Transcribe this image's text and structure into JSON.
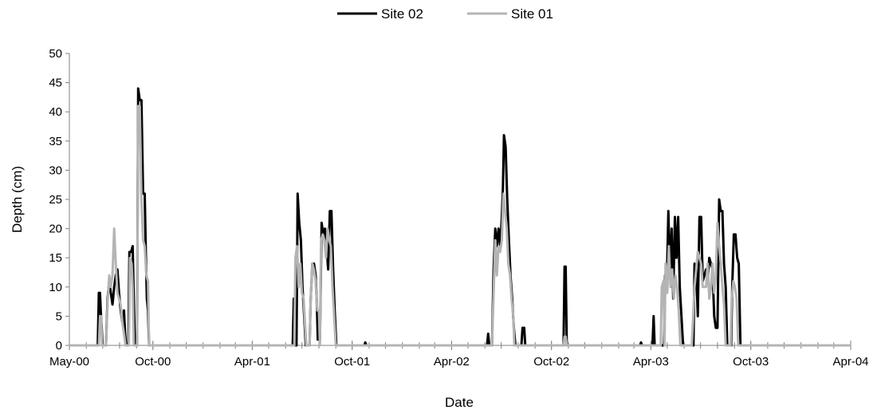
{
  "chart_data": {
    "type": "line",
    "title": "",
    "xlabel": "Date",
    "ylabel": "Depth (cm)",
    "ylim": [
      0,
      50
    ],
    "yticks": [
      0,
      5,
      10,
      15,
      20,
      25,
      30,
      35,
      40,
      45,
      50
    ],
    "xlim": [
      "2000-05-01",
      "2004-04-01"
    ],
    "xticks": [
      {
        "date": "2000-05-01",
        "label": "May-00"
      },
      {
        "date": "2000-10-01",
        "label": "Oct-00"
      },
      {
        "date": "2001-04-01",
        "label": "Apr-01"
      },
      {
        "date": "2001-10-01",
        "label": "Oct-01"
      },
      {
        "date": "2002-04-01",
        "label": "Apr-02"
      },
      {
        "date": "2002-10-01",
        "label": "Oct-02"
      },
      {
        "date": "2003-04-01",
        "label": "Apr-03"
      },
      {
        "date": "2003-10-01",
        "label": "Oct-03"
      },
      {
        "date": "2004-04-01",
        "label": "Apr-04"
      }
    ],
    "grid": false,
    "legend": "top-center",
    "series": [
      {
        "name": "Site 02",
        "color": "#000000",
        "points": [
          [
            "2000-05-01",
            0
          ],
          [
            "2000-06-22",
            0
          ],
          [
            "2000-06-24",
            9
          ],
          [
            "2000-06-26",
            9
          ],
          [
            "2000-06-28",
            5
          ],
          [
            "2000-07-01",
            0
          ],
          [
            "2000-07-07",
            0
          ],
          [
            "2000-07-10",
            8
          ],
          [
            "2000-07-13",
            11
          ],
          [
            "2000-07-16",
            9
          ],
          [
            "2000-07-19",
            7
          ],
          [
            "2000-07-22",
            10
          ],
          [
            "2000-07-25",
            12
          ],
          [
            "2000-07-28",
            13
          ],
          [
            "2000-07-31",
            9
          ],
          [
            "2000-08-03",
            6
          ],
          [
            "2000-08-06",
            4
          ],
          [
            "2000-08-09",
            6
          ],
          [
            "2000-08-11",
            2
          ],
          [
            "2000-08-13",
            0
          ],
          [
            "2000-08-17",
            0
          ],
          [
            "2000-08-19",
            16
          ],
          [
            "2000-08-22",
            16
          ],
          [
            "2000-08-25",
            17
          ],
          [
            "2000-08-27",
            8
          ],
          [
            "2000-08-29",
            0
          ],
          [
            "2000-09-02",
            0
          ],
          [
            "2000-09-04",
            44
          ],
          [
            "2000-09-07",
            42
          ],
          [
            "2000-09-10",
            42
          ],
          [
            "2000-09-13",
            26
          ],
          [
            "2000-09-16",
            26
          ],
          [
            "2000-09-18",
            16
          ],
          [
            "2000-09-20",
            8
          ],
          [
            "2000-09-22",
            6
          ],
          [
            "2000-09-24",
            0
          ],
          [
            "2001-06-14",
            0
          ],
          [
            "2001-06-16",
            8
          ],
          [
            "2001-06-18",
            0
          ],
          [
            "2001-06-21",
            0
          ],
          [
            "2001-06-23",
            26
          ],
          [
            "2001-06-26",
            21
          ],
          [
            "2001-06-29",
            18
          ],
          [
            "2001-07-02",
            10
          ],
          [
            "2001-07-05",
            5
          ],
          [
            "2001-07-08",
            0
          ],
          [
            "2001-07-15",
            0
          ],
          [
            "2001-07-17",
            8
          ],
          [
            "2001-07-20",
            14
          ],
          [
            "2001-07-23",
            14
          ],
          [
            "2001-07-26",
            12
          ],
          [
            "2001-07-28",
            8
          ],
          [
            "2001-07-30",
            1
          ],
          [
            "2001-08-03",
            1
          ],
          [
            "2001-08-06",
            21
          ],
          [
            "2001-08-09",
            19
          ],
          [
            "2001-08-12",
            20
          ],
          [
            "2001-08-15",
            17
          ],
          [
            "2001-08-18",
            13
          ],
          [
            "2001-08-21",
            23
          ],
          [
            "2001-08-24",
            23
          ],
          [
            "2001-08-27",
            13
          ],
          [
            "2001-08-30",
            6
          ],
          [
            "2001-09-02",
            0
          ],
          [
            "2001-10-23",
            0
          ],
          [
            "2001-10-25",
            0.5
          ],
          [
            "2001-10-27",
            0
          ],
          [
            "2002-06-05",
            0
          ],
          [
            "2002-06-07",
            2
          ],
          [
            "2002-06-09",
            0
          ],
          [
            "2002-06-14",
            0
          ],
          [
            "2002-06-17",
            13
          ],
          [
            "2002-06-20",
            20
          ],
          [
            "2002-06-23",
            17
          ],
          [
            "2002-06-26",
            20
          ],
          [
            "2002-06-29",
            17
          ],
          [
            "2002-07-02",
            22
          ],
          [
            "2002-07-04",
            27
          ],
          [
            "2002-07-06",
            36
          ],
          [
            "2002-07-09",
            34
          ],
          [
            "2002-07-12",
            25
          ],
          [
            "2002-07-15",
            18
          ],
          [
            "2002-07-18",
            12
          ],
          [
            "2002-07-21",
            8
          ],
          [
            "2002-07-24",
            3
          ],
          [
            "2002-07-27",
            0
          ],
          [
            "2002-08-07",
            0
          ],
          [
            "2002-08-09",
            3
          ],
          [
            "2002-08-12",
            3
          ],
          [
            "2002-08-14",
            0
          ],
          [
            "2002-10-23",
            0
          ],
          [
            "2002-10-25",
            13.5
          ],
          [
            "2002-10-27",
            13.5
          ],
          [
            "2002-10-29",
            0
          ],
          [
            "2003-03-12",
            0
          ],
          [
            "2003-03-14",
            0.5
          ],
          [
            "2003-03-16",
            0
          ],
          [
            "2003-04-04",
            0
          ],
          [
            "2003-04-06",
            5
          ],
          [
            "2003-04-08",
            0
          ],
          [
            "2003-04-25",
            0
          ],
          [
            "2003-04-27",
            12
          ],
          [
            "2003-04-30",
            10
          ],
          [
            "2003-05-03",
            23
          ],
          [
            "2003-05-06",
            12
          ],
          [
            "2003-05-09",
            20
          ],
          [
            "2003-05-12",
            8
          ],
          [
            "2003-05-15",
            22
          ],
          [
            "2003-05-18",
            15
          ],
          [
            "2003-05-21",
            22
          ],
          [
            "2003-05-24",
            10
          ],
          [
            "2003-05-27",
            5
          ],
          [
            "2003-05-30",
            0
          ],
          [
            "2003-06-18",
            0
          ],
          [
            "2003-06-20",
            14
          ],
          [
            "2003-06-23",
            13
          ],
          [
            "2003-06-26",
            5
          ],
          [
            "2003-06-29",
            22
          ],
          [
            "2003-07-02",
            22
          ],
          [
            "2003-07-05",
            11
          ],
          [
            "2003-07-08",
            12
          ],
          [
            "2003-07-11",
            13
          ],
          [
            "2003-07-14",
            11
          ],
          [
            "2003-07-17",
            15
          ],
          [
            "2003-07-20",
            14
          ],
          [
            "2003-07-23",
            13
          ],
          [
            "2003-07-26",
            5
          ],
          [
            "2003-07-29",
            3
          ],
          [
            "2003-08-01",
            3
          ],
          [
            "2003-08-04",
            25
          ],
          [
            "2003-08-07",
            23
          ],
          [
            "2003-08-10",
            23
          ],
          [
            "2003-08-13",
            14
          ],
          [
            "2003-08-16",
            10
          ],
          [
            "2003-08-19",
            0
          ],
          [
            "2003-08-26",
            0
          ],
          [
            "2003-08-28",
            10
          ],
          [
            "2003-08-31",
            19
          ],
          [
            "2003-09-03",
            19
          ],
          [
            "2003-09-06",
            15
          ],
          [
            "2003-09-09",
            14
          ],
          [
            "2003-09-12",
            0
          ],
          [
            "2004-04-01",
            0
          ]
        ]
      },
      {
        "name": "Site 01",
        "color": "#b4b4b4",
        "points": [
          [
            "2000-05-01",
            0
          ],
          [
            "2000-06-24",
            0
          ],
          [
            "2000-06-26",
            5
          ],
          [
            "2000-06-28",
            5
          ],
          [
            "2000-06-30",
            0
          ],
          [
            "2000-07-07",
            0
          ],
          [
            "2000-07-10",
            7
          ],
          [
            "2000-07-13",
            12
          ],
          [
            "2000-07-16",
            10
          ],
          [
            "2000-07-19",
            12
          ],
          [
            "2000-07-22",
            20
          ],
          [
            "2000-07-25",
            14
          ],
          [
            "2000-07-28",
            9
          ],
          [
            "2000-07-31",
            8
          ],
          [
            "2000-08-03",
            7
          ],
          [
            "2000-08-06",
            4
          ],
          [
            "2000-08-09",
            2
          ],
          [
            "2000-08-12",
            0
          ],
          [
            "2000-08-18",
            0
          ],
          [
            "2000-08-20",
            15
          ],
          [
            "2000-08-23",
            14
          ],
          [
            "2000-08-25",
            10
          ],
          [
            "2000-08-27",
            0
          ],
          [
            "2000-09-02",
            0
          ],
          [
            "2000-09-04",
            41
          ],
          [
            "2000-09-07",
            41
          ],
          [
            "2000-09-10",
            25
          ],
          [
            "2000-09-13",
            18
          ],
          [
            "2000-09-16",
            17
          ],
          [
            "2000-09-19",
            12
          ],
          [
            "2000-09-22",
            11
          ],
          [
            "2000-09-24",
            0
          ],
          [
            "2001-06-17",
            0
          ],
          [
            "2001-06-19",
            15
          ],
          [
            "2001-06-22",
            17
          ],
          [
            "2001-06-25",
            10
          ],
          [
            "2001-06-28",
            14
          ],
          [
            "2001-07-01",
            9
          ],
          [
            "2001-07-04",
            8
          ],
          [
            "2001-07-07",
            3
          ],
          [
            "2001-07-09",
            0
          ],
          [
            "2001-07-15",
            0
          ],
          [
            "2001-07-17",
            8
          ],
          [
            "2001-07-20",
            14
          ],
          [
            "2001-07-23",
            13
          ],
          [
            "2001-07-26",
            11
          ],
          [
            "2001-07-29",
            6
          ],
          [
            "2001-08-01",
            6
          ],
          [
            "2001-08-03",
            0
          ],
          [
            "2001-08-05",
            18
          ],
          [
            "2001-08-08",
            19
          ],
          [
            "2001-08-11",
            18
          ],
          [
            "2001-08-14",
            15
          ],
          [
            "2001-08-17",
            20
          ],
          [
            "2001-08-20",
            18
          ],
          [
            "2001-08-23",
            17
          ],
          [
            "2001-08-26",
            10
          ],
          [
            "2001-08-29",
            5
          ],
          [
            "2001-09-01",
            0
          ],
          [
            "2002-06-14",
            0
          ],
          [
            "2002-06-17",
            9
          ],
          [
            "2002-06-20",
            18
          ],
          [
            "2002-06-23",
            12
          ],
          [
            "2002-06-26",
            17
          ],
          [
            "2002-06-29",
            16
          ],
          [
            "2002-07-02",
            18
          ],
          [
            "2002-07-05",
            26
          ],
          [
            "2002-07-08",
            23
          ],
          [
            "2002-07-11",
            20
          ],
          [
            "2002-07-14",
            14
          ],
          [
            "2002-07-17",
            12
          ],
          [
            "2002-07-20",
            8
          ],
          [
            "2002-07-23",
            5
          ],
          [
            "2002-07-25",
            0
          ],
          [
            "2002-10-23",
            0
          ],
          [
            "2002-10-25",
            1.5
          ],
          [
            "2002-10-27",
            1.5
          ],
          [
            "2002-10-29",
            0
          ],
          [
            "2003-04-19",
            0
          ],
          [
            "2003-04-21",
            10
          ],
          [
            "2003-04-24",
            11
          ],
          [
            "2003-04-26",
            0
          ],
          [
            "2003-04-28",
            14
          ],
          [
            "2003-05-01",
            9
          ],
          [
            "2003-05-04",
            17
          ],
          [
            "2003-05-07",
            10
          ],
          [
            "2003-05-10",
            13
          ],
          [
            "2003-05-13",
            8
          ],
          [
            "2003-05-16",
            12
          ],
          [
            "2003-05-19",
            10
          ],
          [
            "2003-05-22",
            6
          ],
          [
            "2003-05-25",
            0
          ],
          [
            "2003-06-15",
            0
          ],
          [
            "2003-06-17",
            4
          ],
          [
            "2003-06-20",
            10
          ],
          [
            "2003-06-23",
            13
          ],
          [
            "2003-06-26",
            16
          ],
          [
            "2003-06-29",
            15
          ],
          [
            "2003-07-02",
            14
          ],
          [
            "2003-07-05",
            10
          ],
          [
            "2003-07-08",
            10
          ],
          [
            "2003-07-11",
            10
          ],
          [
            "2003-07-14",
            14
          ],
          [
            "2003-07-17",
            8
          ],
          [
            "2003-07-20",
            10
          ],
          [
            "2003-07-23",
            14
          ],
          [
            "2003-07-26",
            9
          ],
          [
            "2003-07-29",
            12
          ],
          [
            "2003-08-01",
            21
          ],
          [
            "2003-08-04",
            17
          ],
          [
            "2003-08-07",
            14
          ],
          [
            "2003-08-10",
            10
          ],
          [
            "2003-08-13",
            7
          ],
          [
            "2003-08-16",
            0
          ],
          [
            "2003-08-25",
            0
          ],
          [
            "2003-08-27",
            8
          ],
          [
            "2003-08-30",
            11
          ],
          [
            "2003-09-02",
            10
          ],
          [
            "2003-09-05",
            8
          ],
          [
            "2003-09-08",
            0
          ],
          [
            "2004-04-01",
            0
          ]
        ]
      }
    ]
  }
}
